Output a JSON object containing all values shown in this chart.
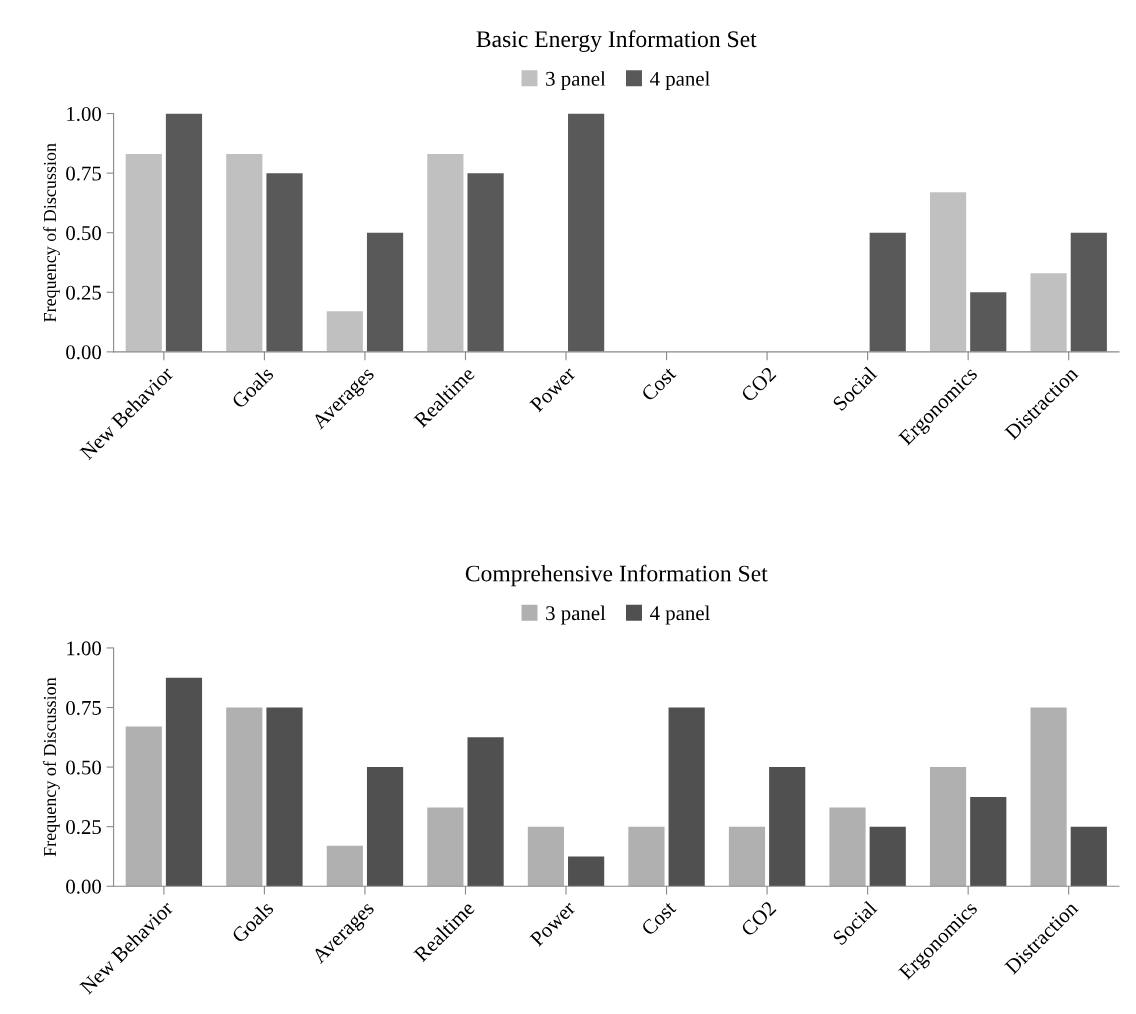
{
  "chart_data": [
    {
      "type": "bar",
      "title": "Basic Energy Information Set",
      "ylabel": "Frequency of Discussion",
      "categories": [
        "New Behavior",
        "Goals",
        "Averages",
        "Realtime",
        "Power",
        "Cost",
        "CO2",
        "Social",
        "Ergonomics",
        "Distraction"
      ],
      "series": [
        {
          "name": "3 panel",
          "color": "#c0c0c0",
          "values": [
            0.83,
            0.83,
            0.17,
            0.83,
            0,
            0,
            0,
            0,
            0.67,
            0.33
          ]
        },
        {
          "name": "4 panel",
          "color": "#595959",
          "values": [
            1.0,
            0.75,
            0.5,
            0.75,
            1.0,
            0,
            0,
            0.5,
            0.25,
            0.5
          ]
        }
      ],
      "ylim": [
        0,
        1
      ],
      "yticks": [
        {
          "value": 0,
          "label": "0.00"
        },
        {
          "value": 0.25,
          "label": "0.25"
        },
        {
          "value": 0.5,
          "label": "0.50"
        },
        {
          "value": 0.75,
          "label": "0.75"
        },
        {
          "value": 1,
          "label": "1.00"
        }
      ],
      "grid": false,
      "legend": "top"
    },
    {
      "type": "bar",
      "title": "Comprehensive Information Set",
      "ylabel": "Frequency of Discussion",
      "categories": [
        "New Behavior",
        "Goals",
        "Averages",
        "Realtime",
        "Power",
        "Cost",
        "CO2",
        "Social",
        "Ergonomics",
        "Distraction"
      ],
      "series": [
        {
          "name": "3 panel",
          "color": "#b0b0b0",
          "values": [
            0.67,
            0.75,
            0.17,
            0.33,
            0.25,
            0.25,
            0.25,
            0.33,
            0.5,
            0.75
          ]
        },
        {
          "name": "4 panel",
          "color": "#505050",
          "values": [
            0.875,
            0.75,
            0.5,
            0.625,
            0.125,
            0.75,
            0.5,
            0.25,
            0.375,
            0.25
          ]
        }
      ],
      "ylim": [
        0,
        1
      ],
      "yticks": [
        {
          "value": 0,
          "label": "0.00"
        },
        {
          "value": 0.25,
          "label": "0.25"
        },
        {
          "value": 0.5,
          "label": "0.50"
        },
        {
          "value": 0.75,
          "label": "0.75"
        },
        {
          "value": 1,
          "label": "1.00"
        }
      ],
      "grid": false,
      "legend": "top"
    }
  ]
}
